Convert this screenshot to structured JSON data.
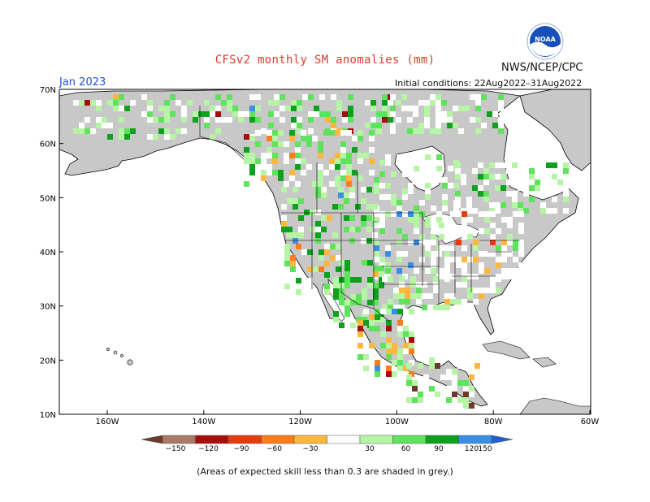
{
  "title": "CFSv2 monthly SM anomalies (mm)",
  "agency": "NWS/NCEP/CPC",
  "period": "Jan 2023",
  "initial_conditions": "Initial conditions: 22Aug2022–31Aug2022",
  "footer_note": "(Areas of expected skill less than 0.3 are shaded in grey.)",
  "logo_text": "NOAA",
  "lat_labels": [
    "70N",
    "60N",
    "50N",
    "40N",
    "30N",
    "20N",
    "10N"
  ],
  "lon_labels": [
    "160W",
    "140W",
    "120W",
    "100W",
    "80W",
    "60W"
  ],
  "colorbar": {
    "labels": [
      "−150",
      "−120",
      "−90",
      "−60",
      "−30",
      "30",
      "60",
      "90",
      "120",
      "150"
    ],
    "colors": [
      "#6b3a2a",
      "#a97a66",
      "#a80d0d",
      "#e83a0c",
      "#fb7e1a",
      "#fdb73e",
      "#ffffff",
      "#b6f5a6",
      "#5fe35c",
      "#0da11d",
      "#3a8fe5",
      "#1f5fd6"
    ]
  },
  "colors": {
    "ocean": "#ffffff",
    "grey_skill_mask": "#c8c8c8",
    "coastline": "#000000"
  }
}
